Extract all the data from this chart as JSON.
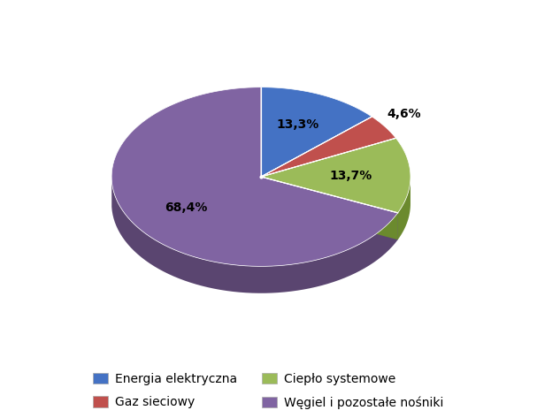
{
  "labels": [
    "Energia elektryczna",
    "Gaz sieciowy",
    "Ciepło systemowe",
    "Węgiel i pozostałe nośniki"
  ],
  "values": [
    13.3,
    4.6,
    13.7,
    68.4
  ],
  "colors": [
    "#4472C4",
    "#C0504D",
    "#9BBB59",
    "#8064A2"
  ],
  "dark_colors": [
    "#2E5085",
    "#8B2E2B",
    "#6B8A2E",
    "#5A4570"
  ],
  "pct_labels": [
    "13,3%",
    "4,6%",
    "13,7%",
    "68,4%"
  ],
  "startangle": 90,
  "figsize": [
    6.07,
    4.73
  ],
  "dpi": 100,
  "legend_fontsize": 10,
  "pct_fontsize": 10,
  "background_color": "#ffffff"
}
